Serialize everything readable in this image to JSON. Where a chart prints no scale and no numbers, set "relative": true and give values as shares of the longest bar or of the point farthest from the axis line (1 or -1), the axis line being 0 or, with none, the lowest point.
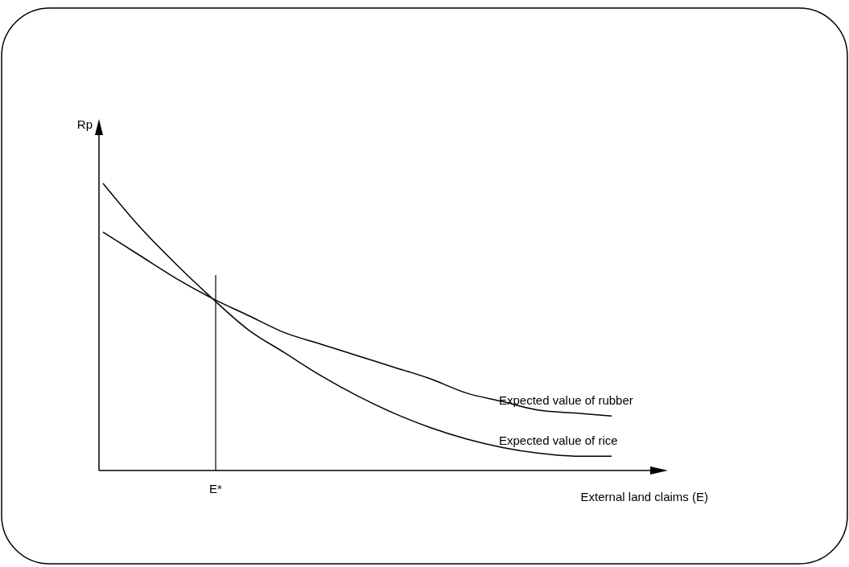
{
  "chart_data": {
    "type": "line",
    "relative": true,
    "xlabel": "External land claims (E)",
    "ylabel": "Rp",
    "categories": [
      null,
      null,
      null,
      null,
      null,
      null,
      null,
      null,
      null,
      null,
      null,
      null,
      null,
      null,
      null
    ],
    "series": [
      {
        "name": "Expected value of rubber",
        "color": "#000000",
        "values": [
          0.83,
          0.75,
          0.67,
          0.6,
          0.54,
          0.48,
          0.44,
          0.4,
          0.36,
          0.32,
          0.27,
          0.24,
          0.21,
          0.2,
          0.19
        ]
      },
      {
        "name": "Expected value of rice",
        "color": "#000000",
        "values": [
          1,
          0.85,
          0.72,
          0.6,
          0.49,
          0.41,
          0.33,
          0.26,
          0.2,
          0.15,
          0.11,
          0.08,
          0.06,
          0.05,
          0.05
        ]
      }
    ],
    "annotations": [
      "E*"
    ],
    "marker": "none",
    "line_style": "solid"
  }
}
